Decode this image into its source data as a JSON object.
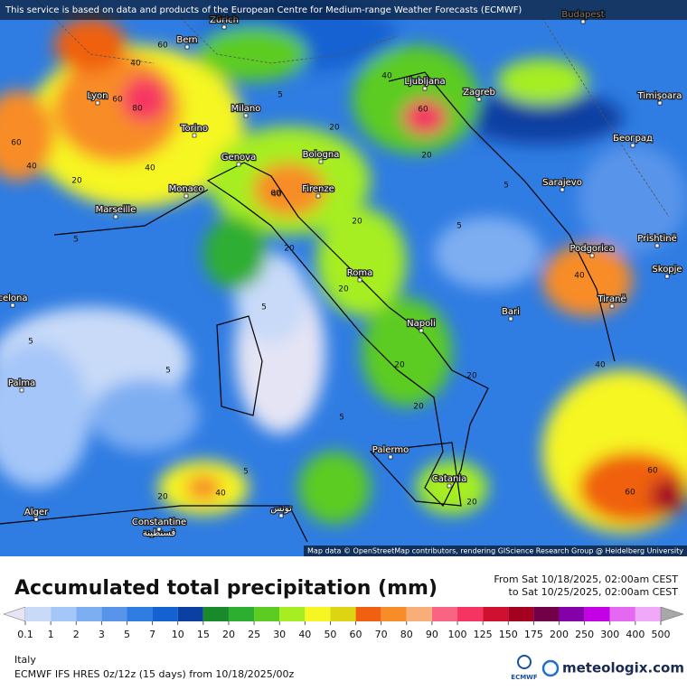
{
  "header": {
    "notice": "This service is based on data and products of the European Centre for Medium-range Weather Forecasts (ECMWF)"
  },
  "map": {
    "cities": [
      "Zürich",
      "Budapest",
      "Bern",
      "Ljubljana",
      "Zagreb",
      "Timișoara",
      "Lyon",
      "Milano",
      "Torino",
      "Београд",
      "Genova",
      "Bologna",
      "Monaco",
      "Firenze",
      "Sarajevo",
      "Marseille",
      "Podgorica",
      "Prishtinë",
      "Roma",
      "Skopje",
      "Tiranë",
      "celona",
      "Bari",
      "Napoli",
      "Palma",
      "Palermo",
      "Catania",
      "Alger",
      "Constantine",
      "قسنطينة",
      "تونس"
    ],
    "contour_labels": [
      60,
      40,
      60,
      80,
      60,
      40,
      20,
      40,
      60,
      20,
      5,
      20,
      40,
      60,
      20,
      5,
      5,
      20,
      20,
      5,
      5,
      40,
      60,
      40,
      20,
      20,
      5,
      5,
      20,
      40,
      60,
      5,
      20,
      20,
      40,
      5
    ],
    "attribution": "Map data © OpenStreetMap contributors, rendering GIScience Research Group @ Heidelberg University"
  },
  "legend": {
    "title": "Accumulated total precipitation (mm)",
    "from": "From Sat 10/18/2025, 02:00am CEST",
    "to": "to Sat 10/25/2025, 02:00am CEST",
    "ticks": [
      0.1,
      1,
      2,
      3,
      5,
      7,
      10,
      15,
      20,
      25,
      30,
      40,
      50,
      60,
      70,
      80,
      90,
      100,
      125,
      150,
      175,
      200,
      250,
      300,
      400,
      500
    ],
    "colors": [
      "#e4e4f4",
      "#c8daf8",
      "#a4c6f8",
      "#7eaef2",
      "#5894ea",
      "#2f7ce2",
      "#1462d2",
      "#0c3fa2",
      "#188a2a",
      "#2eae30",
      "#5ccc22",
      "#a6ee22",
      "#f6f622",
      "#ddd512",
      "#f06010",
      "#f88c28",
      "#f8ae78",
      "#f86482",
      "#f63462",
      "#d01030",
      "#a40020",
      "#720048",
      "#8400a8",
      "#c400e4",
      "#e468f2",
      "#f0a8f8",
      "#f8dcf8",
      "#a8a8a8"
    ]
  },
  "footer": {
    "region": "Italy",
    "model": "ECMWF IFS HRES 0z/12z (15 days) from  10/18/2025/00z",
    "ecmwf_logo": "ECMWF",
    "brand": "meteologix.com"
  }
}
